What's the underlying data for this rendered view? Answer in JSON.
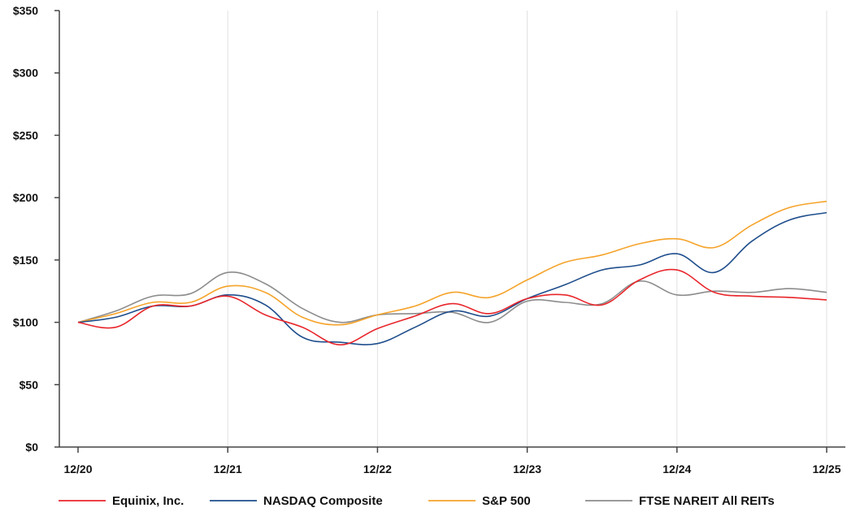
{
  "chart_data": {
    "type": "line",
    "title": "",
    "xlabel": "",
    "ylabel": "",
    "ylim": [
      0,
      350
    ],
    "y_ticks": [
      "$0",
      "$50",
      "$100",
      "$150",
      "$200",
      "$250",
      "$300",
      "$350"
    ],
    "y_tick_values": [
      0,
      50,
      100,
      150,
      200,
      250,
      300,
      350
    ],
    "categories": [
      "12/20",
      "12/21",
      "12/22",
      "12/23",
      "12/24",
      "12/25"
    ],
    "grid": "vertical gridlines at each year",
    "legend": "bottom",
    "x": [
      "12/20",
      "3/21",
      "6/21",
      "9/21",
      "12/21",
      "3/22",
      "6/22",
      "9/22",
      "12/22",
      "3/23",
      "6/23",
      "9/23",
      "12/23",
      "3/24",
      "6/24",
      "9/24",
      "12/24",
      "3/25",
      "6/25",
      "9/25",
      "12/25"
    ],
    "series": [
      {
        "name": "Equinix, Inc.",
        "color": "#e8262b",
        "values": [
          100,
          96,
          113,
          113,
          121,
          106,
          96,
          82,
          95,
          105,
          115,
          107,
          119,
          122,
          114,
          134,
          142,
          124,
          121,
          120,
          118
        ]
      },
      {
        "name": "NASDAQ Composite",
        "color": "#1f4e8c",
        "values": [
          100,
          104,
          113,
          113,
          122,
          114,
          88,
          84,
          83,
          96,
          109,
          105,
          119,
          130,
          142,
          146,
          155,
          140,
          165,
          182,
          188
        ]
      },
      {
        "name": "S&P 500",
        "color": "#f5a32a",
        "values": [
          100,
          107,
          116,
          116,
          129,
          124,
          104,
          98,
          106,
          113,
          124,
          120,
          134,
          148,
          154,
          163,
          167,
          160,
          178,
          192,
          197
        ]
      },
      {
        "name": "FTSE NAREIT All REITs",
        "color": "#8c8c8c",
        "values": [
          100,
          109,
          121,
          123,
          140,
          131,
          111,
          100,
          106,
          107,
          108,
          100,
          117,
          116,
          115,
          133,
          122,
          125,
          124,
          127,
          124
        ]
      }
    ]
  }
}
